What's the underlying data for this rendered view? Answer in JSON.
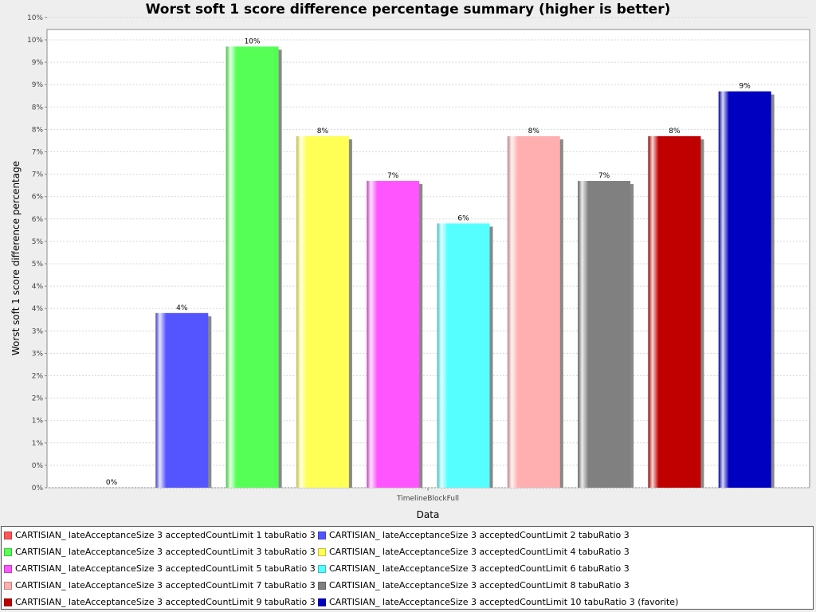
{
  "chart_data": {
    "type": "bar",
    "title": "Worst soft 1 score difference percentage summary (higher is better)",
    "xlabel": "Data",
    "ylabel": "Worst soft 1 score difference percentage",
    "categories": [
      "TimelineBlockFull"
    ],
    "ylim": [
      0,
      10
    ],
    "grid": true,
    "legend_position": "bottom",
    "y_tick_labels": [
      "0%",
      "0%",
      "1%",
      "1%",
      "2%",
      "2%",
      "3%",
      "3%",
      "4%",
      "4%",
      "5%",
      "5%",
      "6%",
      "6%",
      "7%",
      "7%",
      "8%",
      "8%",
      "9%",
      "9%",
      "10%",
      "10%"
    ],
    "series": [
      {
        "name": "CARTISIAN_ lateAcceptanceSize 3 acceptedCountLimit 1 tabuRatio 3",
        "values": [
          0
        ],
        "label": "0%",
        "color": "#ff5555"
      },
      {
        "name": "CARTISIAN_ lateAcceptanceSize 3 acceptedCountLimit 2 tabuRatio 3",
        "values": [
          3.9
        ],
        "label": "4%",
        "color": "#5555ff"
      },
      {
        "name": "CARTISIAN_ lateAcceptanceSize 3 acceptedCountLimit 3 tabuRatio 3",
        "values": [
          9.85
        ],
        "label": "10%",
        "color": "#55ff55"
      },
      {
        "name": "CARTISIAN_ lateAcceptanceSize 3 acceptedCountLimit 4 tabuRatio 3",
        "values": [
          7.85
        ],
        "label": "8%",
        "color": "#ffff55"
      },
      {
        "name": "CARTISIAN_ lateAcceptanceSize 3 acceptedCountLimit 5 tabuRatio 3",
        "values": [
          6.85
        ],
        "label": "7%",
        "color": "#ff55ff"
      },
      {
        "name": "CARTISIAN_ lateAcceptanceSize 3 acceptedCountLimit 6 tabuRatio 3",
        "values": [
          5.9
        ],
        "label": "6%",
        "color": "#55ffff"
      },
      {
        "name": "CARTISIAN_ lateAcceptanceSize 3 acceptedCountLimit 7 tabuRatio 3",
        "values": [
          7.85
        ],
        "label": "8%",
        "color": "#ffafaf"
      },
      {
        "name": "CARTISIAN_ lateAcceptanceSize 3 acceptedCountLimit 8 tabuRatio 3",
        "values": [
          6.85
        ],
        "label": "7%",
        "color": "#808080"
      },
      {
        "name": "CARTISIAN_ lateAcceptanceSize 3 acceptedCountLimit 9 tabuRatio 3",
        "values": [
          7.85
        ],
        "label": "8%",
        "color": "#c00000"
      },
      {
        "name": "CARTISIAN_ lateAcceptanceSize 3 acceptedCountLimit 10 tabuRatio 3 (favorite)",
        "values": [
          8.85
        ],
        "label": "9%",
        "color": "#0000c0"
      }
    ]
  }
}
